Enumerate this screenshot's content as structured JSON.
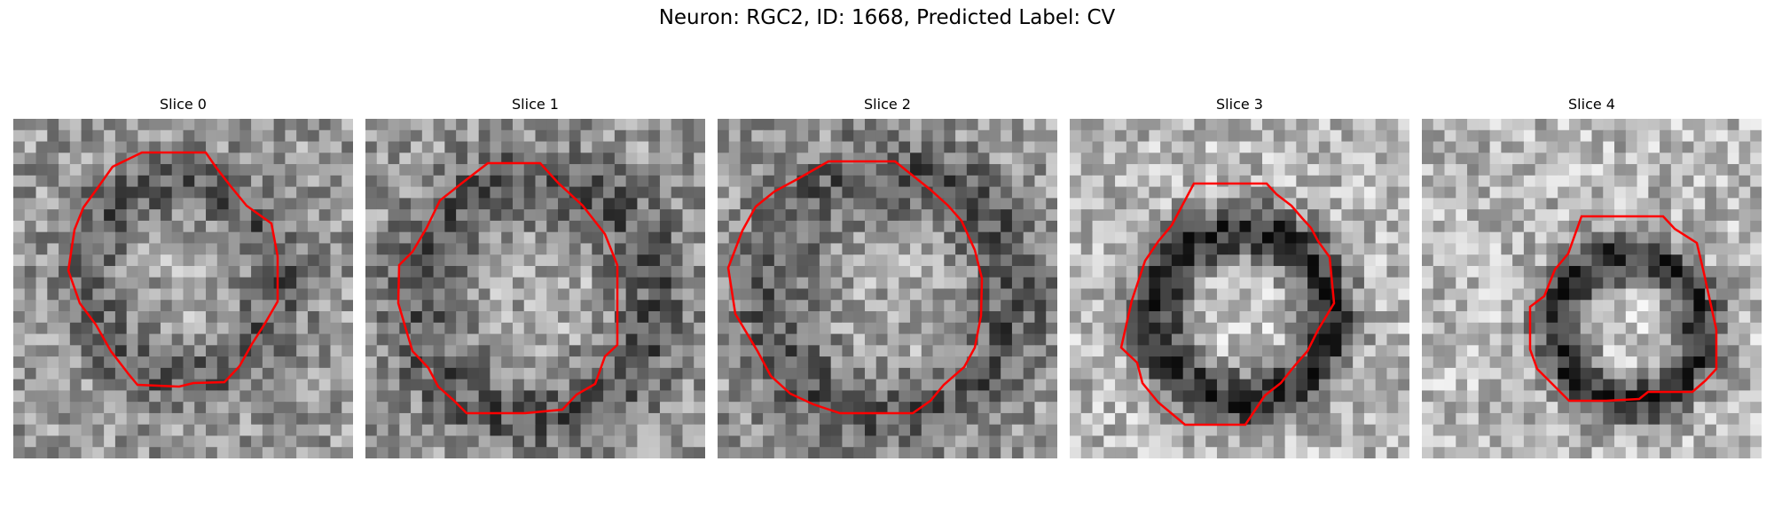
{
  "figure": {
    "title": "Neuron: RGC2, ID: 1668, Predicted Label: CV",
    "panels": [
      {
        "title": "Slice 0",
        "image": "grayscale microscopy slice with red soma contour"
      },
      {
        "title": "Slice 1",
        "image": "grayscale microscopy slice with red soma contour"
      },
      {
        "title": "Slice 2",
        "image": "grayscale microscopy slice with red soma contour"
      },
      {
        "title": "Slice 3",
        "image": "grayscale microscopy slice with red soma contour"
      },
      {
        "title": "Slice 4",
        "image": "grayscale microscopy slice with red soma contour"
      }
    ],
    "contour_color": "#ff0000"
  }
}
